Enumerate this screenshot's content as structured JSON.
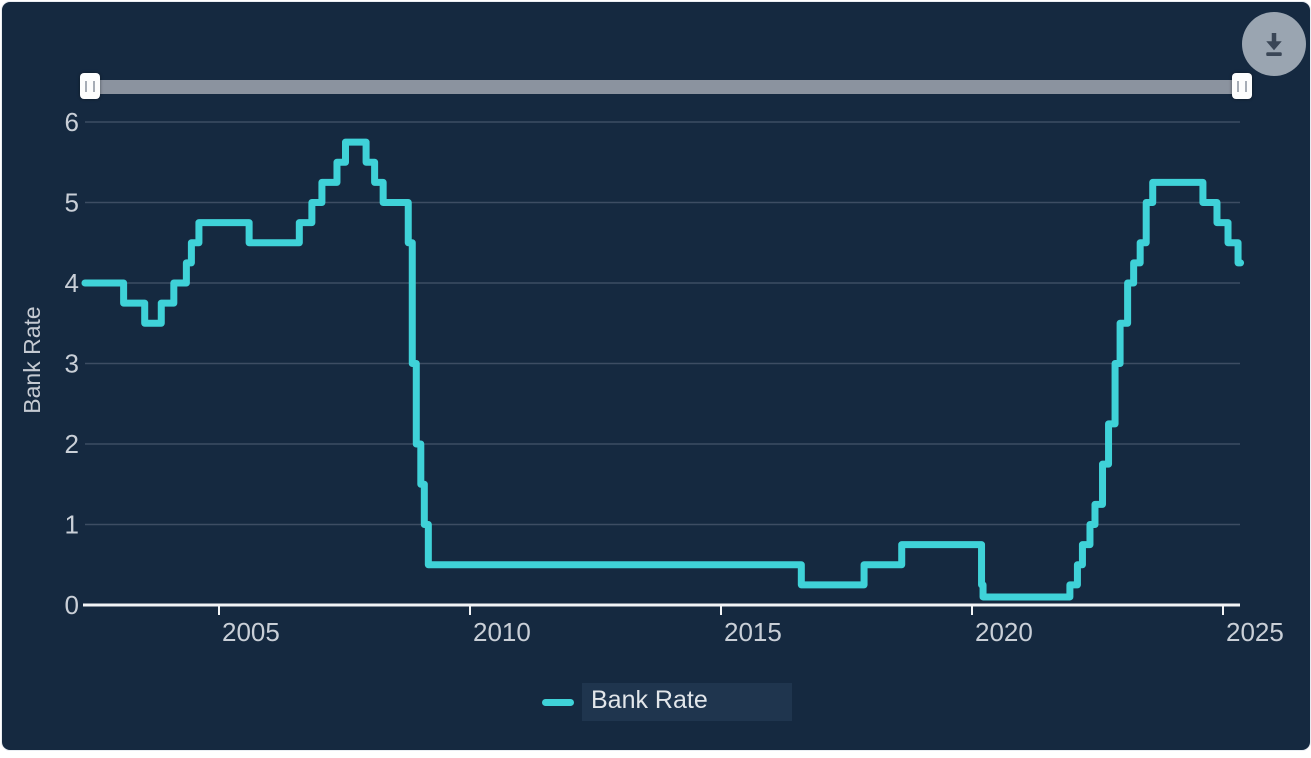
{
  "colors": {
    "background": "#152940",
    "series_line": "#3FD2D8",
    "gridline": "#3D4D63",
    "axis_line": "#F2F4F6",
    "tick_label": "#C9CFD7",
    "slider_track": "#8B939F",
    "slider_handle": "#FCFDFD",
    "download_button_bg": "#9AA5B1",
    "download_icon": "#3A4656"
  },
  "controls": {
    "download_button": {
      "icon": "download-arrow-icon"
    },
    "range_slider": {
      "left_handle_icon": "grip-lines-icon",
      "right_handle_icon": "grip-lines-icon"
    }
  },
  "chart_data": {
    "type": "line",
    "step": "after",
    "title": "",
    "xlabel": "",
    "ylabel": "Bank Rate",
    "ylim": [
      0,
      6
    ],
    "x_range": [
      2002.33,
      2025.35
    ],
    "y_ticks": [
      0,
      1,
      2,
      3,
      4,
      5,
      6
    ],
    "x_ticks": [
      2005,
      2010,
      2015,
      2020,
      2025
    ],
    "grid": "horizontal",
    "legend_position": "bottom",
    "series": [
      {
        "name": "Bank Rate",
        "color": "#3FD2D8",
        "points": [
          [
            2002.33,
            4.0
          ],
          [
            2003.1,
            3.75
          ],
          [
            2003.52,
            3.5
          ],
          [
            2003.85,
            3.75
          ],
          [
            2004.1,
            4.0
          ],
          [
            2004.35,
            4.25
          ],
          [
            2004.45,
            4.5
          ],
          [
            2004.6,
            4.75
          ],
          [
            2005.6,
            4.5
          ],
          [
            2006.6,
            4.75
          ],
          [
            2006.85,
            5.0
          ],
          [
            2007.05,
            5.25
          ],
          [
            2007.35,
            5.5
          ],
          [
            2007.52,
            5.75
          ],
          [
            2007.93,
            5.5
          ],
          [
            2008.1,
            5.25
          ],
          [
            2008.27,
            5.0
          ],
          [
            2008.77,
            4.5
          ],
          [
            2008.85,
            3.0
          ],
          [
            2008.93,
            2.0
          ],
          [
            2009.02,
            1.5
          ],
          [
            2009.09,
            1.0
          ],
          [
            2009.17,
            0.5
          ],
          [
            2016.6,
            0.25
          ],
          [
            2017.85,
            0.5
          ],
          [
            2018.6,
            0.75
          ],
          [
            2020.19,
            0.25
          ],
          [
            2020.22,
            0.1
          ],
          [
            2021.95,
            0.25
          ],
          [
            2022.1,
            0.5
          ],
          [
            2022.2,
            0.75
          ],
          [
            2022.35,
            1.0
          ],
          [
            2022.45,
            1.25
          ],
          [
            2022.6,
            1.75
          ],
          [
            2022.72,
            2.25
          ],
          [
            2022.85,
            3.0
          ],
          [
            2022.95,
            3.5
          ],
          [
            2023.1,
            4.0
          ],
          [
            2023.22,
            4.25
          ],
          [
            2023.35,
            4.5
          ],
          [
            2023.47,
            5.0
          ],
          [
            2023.6,
            5.25
          ],
          [
            2024.6,
            5.0
          ],
          [
            2024.88,
            4.75
          ],
          [
            2025.1,
            4.5
          ],
          [
            2025.3,
            4.25
          ]
        ]
      }
    ]
  }
}
